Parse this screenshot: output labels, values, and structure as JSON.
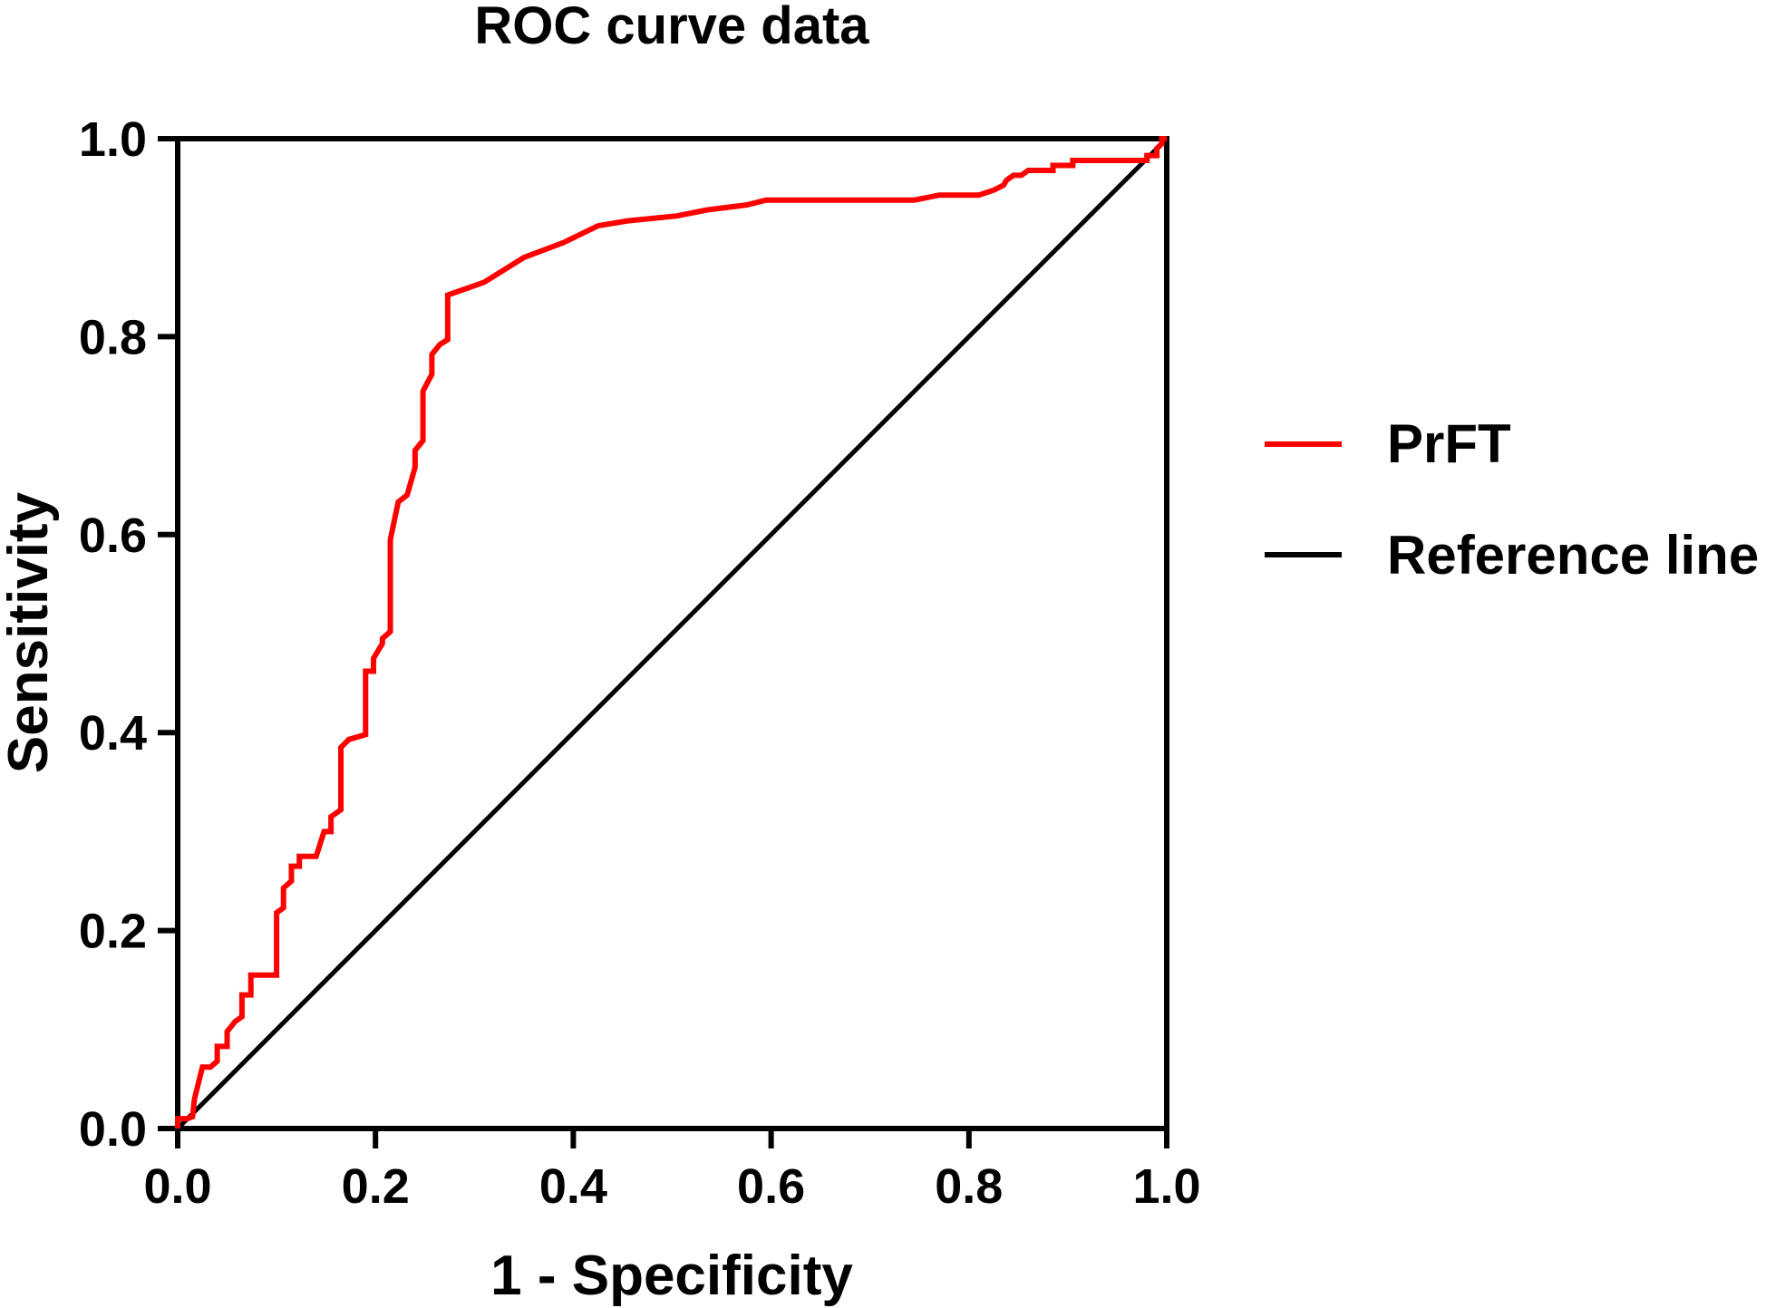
{
  "chart_data": {
    "type": "line",
    "title": "ROC curve data",
    "xlabel": "1 - Specificity",
    "ylabel": "Sensitivity",
    "xlim": [
      0,
      1
    ],
    "ylim": [
      0,
      1
    ],
    "xticks": [
      "0.0",
      "0.2",
      "0.4",
      "0.6",
      "0.8",
      "1.0"
    ],
    "yticks": [
      "0.0",
      "0.2",
      "0.4",
      "0.6",
      "0.8",
      "1.0"
    ],
    "grid": false,
    "legend_position": "right",
    "series": [
      {
        "name": "PrFT",
        "color": "#ff0000",
        "points": [
          [
            0.0,
            0.0
          ],
          [
            0.0,
            0.01
          ],
          [
            0.01,
            0.01
          ],
          [
            0.015,
            0.012
          ],
          [
            0.017,
            0.03
          ],
          [
            0.025,
            0.062
          ],
          [
            0.033,
            0.062
          ],
          [
            0.04,
            0.068
          ],
          [
            0.04,
            0.083
          ],
          [
            0.05,
            0.083
          ],
          [
            0.05,
            0.098
          ],
          [
            0.058,
            0.108
          ],
          [
            0.065,
            0.113
          ],
          [
            0.065,
            0.135
          ],
          [
            0.074,
            0.135
          ],
          [
            0.074,
            0.155
          ],
          [
            0.1,
            0.155
          ],
          [
            0.1,
            0.218
          ],
          [
            0.107,
            0.223
          ],
          [
            0.107,
            0.243
          ],
          [
            0.115,
            0.25
          ],
          [
            0.115,
            0.265
          ],
          [
            0.123,
            0.265
          ],
          [
            0.123,
            0.275
          ],
          [
            0.14,
            0.275
          ],
          [
            0.148,
            0.3
          ],
          [
            0.155,
            0.3
          ],
          [
            0.155,
            0.315
          ],
          [
            0.165,
            0.322
          ],
          [
            0.165,
            0.385
          ],
          [
            0.173,
            0.393
          ],
          [
            0.19,
            0.398
          ],
          [
            0.19,
            0.462
          ],
          [
            0.198,
            0.462
          ],
          [
            0.198,
            0.475
          ],
          [
            0.207,
            0.49
          ],
          [
            0.207,
            0.495
          ],
          [
            0.215,
            0.502
          ],
          [
            0.215,
            0.595
          ],
          [
            0.223,
            0.633
          ],
          [
            0.232,
            0.64
          ],
          [
            0.24,
            0.668
          ],
          [
            0.24,
            0.685
          ],
          [
            0.248,
            0.695
          ],
          [
            0.248,
            0.745
          ],
          [
            0.257,
            0.762
          ],
          [
            0.257,
            0.782
          ],
          [
            0.265,
            0.792
          ],
          [
            0.273,
            0.797
          ],
          [
            0.273,
            0.842
          ],
          [
            0.31,
            0.855
          ],
          [
            0.35,
            0.88
          ],
          [
            0.39,
            0.895
          ],
          [
            0.425,
            0.912
          ],
          [
            0.455,
            0.917
          ],
          [
            0.505,
            0.922
          ],
          [
            0.535,
            0.928
          ],
          [
            0.575,
            0.933
          ],
          [
            0.595,
            0.938
          ],
          [
            0.745,
            0.938
          ],
          [
            0.77,
            0.943
          ],
          [
            0.81,
            0.943
          ],
          [
            0.825,
            0.948
          ],
          [
            0.835,
            0.953
          ],
          [
            0.838,
            0.958
          ],
          [
            0.845,
            0.963
          ],
          [
            0.853,
            0.963
          ],
          [
            0.86,
            0.968
          ],
          [
            0.885,
            0.968
          ],
          [
            0.885,
            0.973
          ],
          [
            0.905,
            0.973
          ],
          [
            0.905,
            0.978
          ],
          [
            0.98,
            0.978
          ],
          [
            0.98,
            0.983
          ],
          [
            0.99,
            0.983
          ],
          [
            0.99,
            0.99
          ],
          [
            0.995,
            0.995
          ],
          [
            0.995,
            1.0
          ],
          [
            1.0,
            1.0
          ]
        ]
      },
      {
        "name": "Reference line",
        "color": "#000000",
        "points": [
          [
            0,
            0
          ],
          [
            1,
            1
          ]
        ]
      }
    ]
  }
}
